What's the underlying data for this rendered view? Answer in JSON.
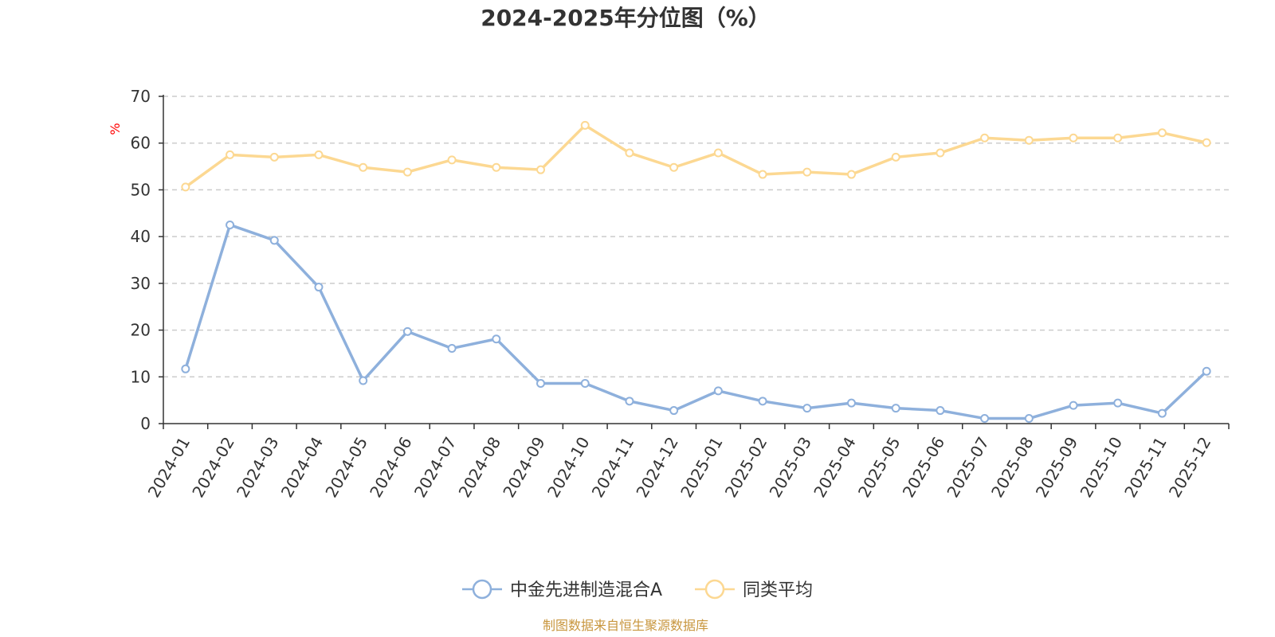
{
  "chart_data": {
    "type": "line",
    "title": "2024-2025年分位图（%）",
    "ylabel": "%",
    "xlabel": "",
    "ylim": [
      0,
      70
    ],
    "yticks": [
      0,
      10,
      20,
      30,
      40,
      50,
      60,
      70
    ],
    "grid": true,
    "legend_position": "bottom-center",
    "categories": [
      "2024-01",
      "2024-02",
      "2024-03",
      "2024-04",
      "2024-05",
      "2024-06",
      "2024-07",
      "2024-08",
      "2024-09",
      "2024-10",
      "2024-11",
      "2024-12",
      "2025-01",
      "2025-02",
      "2025-03",
      "2025-04",
      "2025-05",
      "2025-06",
      "2025-07",
      "2025-08",
      "2025-09",
      "2025-10",
      "2025-11",
      "2025-12"
    ],
    "series": [
      {
        "name": "中金先进制造混合A",
        "color": "#8eb0dc",
        "values": [
          11.7,
          42.5,
          39.2,
          29.2,
          9.2,
          19.7,
          16.1,
          18.1,
          8.6,
          8.6,
          4.8,
          2.8,
          7.0,
          4.8,
          3.3,
          4.4,
          3.3,
          2.8,
          1.1,
          1.1,
          3.9,
          4.4,
          2.2,
          11.2
        ]
      },
      {
        "name": "同类平均",
        "color": "#fcd892",
        "values": [
          50.6,
          57.5,
          57.0,
          57.5,
          54.8,
          53.8,
          56.4,
          54.8,
          54.3,
          63.8,
          57.9,
          54.8,
          57.9,
          53.3,
          53.8,
          53.3,
          57.0,
          57.9,
          61.1,
          60.6,
          61.1,
          61.1,
          62.2,
          60.1
        ]
      }
    ],
    "source": "制图数据来自恒生聚源数据库"
  }
}
